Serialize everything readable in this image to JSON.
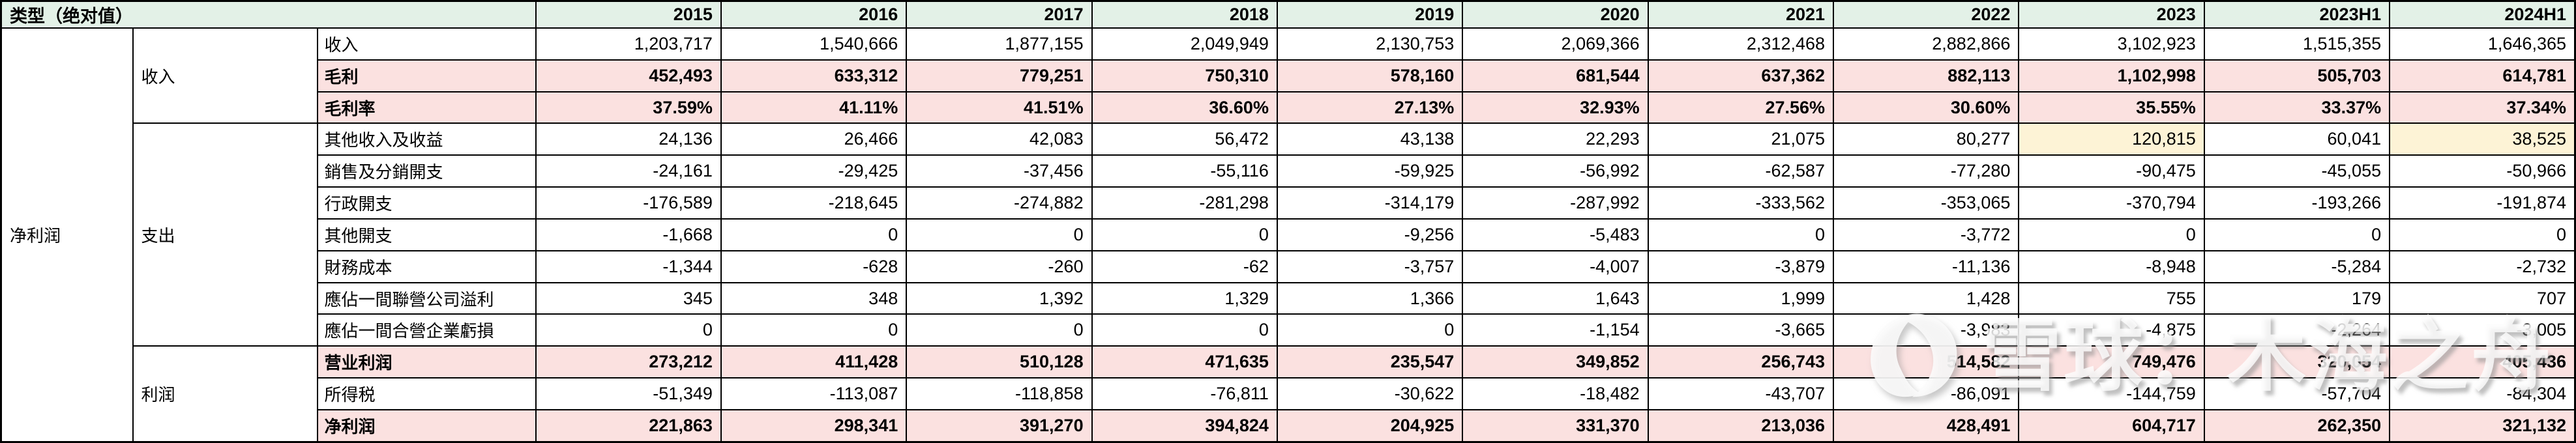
{
  "table": {
    "title": "类型（绝对值）",
    "years": [
      "2015",
      "2016",
      "2017",
      "2018",
      "2019",
      "2020",
      "2021",
      "2022",
      "2023",
      "2023H1",
      "2024H1"
    ],
    "left_label": "净利润",
    "groups": [
      {
        "label": "收入",
        "rows": [
          {
            "label": "收入",
            "highlight": false,
            "values": [
              "1,203,717",
              "1,540,666",
              "1,877,155",
              "2,049,949",
              "2,130,753",
              "2,069,366",
              "2,312,468",
              "2,882,866",
              "3,102,923",
              "1,515,355",
              "1,646,365"
            ]
          },
          {
            "label": "毛利",
            "highlight": true,
            "values": [
              "452,493",
              "633,312",
              "779,251",
              "750,310",
              "578,160",
              "681,544",
              "637,362",
              "882,113",
              "1,102,998",
              "505,703",
              "614,781"
            ]
          },
          {
            "label": "毛利率",
            "highlight": true,
            "values": [
              "37.59%",
              "41.11%",
              "41.51%",
              "36.60%",
              "27.13%",
              "32.93%",
              "27.56%",
              "30.60%",
              "35.55%",
              "33.37%",
              "37.34%"
            ]
          }
        ]
      },
      {
        "label": "支出",
        "rows": [
          {
            "label": "其他收入及收益",
            "highlight": false,
            "yellow_value_indices": [
              8,
              10
            ],
            "values": [
              "24,136",
              "26,466",
              "42,083",
              "56,472",
              "43,138",
              "22,293",
              "21,075",
              "80,277",
              "120,815",
              "60,041",
              "38,525"
            ]
          },
          {
            "label": "銷售及分銷開支",
            "highlight": false,
            "values": [
              "-24,161",
              "-29,425",
              "-37,456",
              "-55,116",
              "-59,925",
              "-56,992",
              "-62,587",
              "-77,280",
              "-90,475",
              "-45,055",
              "-50,966"
            ]
          },
          {
            "label": "行政開支",
            "highlight": false,
            "values": [
              "-176,589",
              "-218,645",
              "-274,882",
              "-281,298",
              "-314,179",
              "-287,992",
              "-333,562",
              "-353,065",
              "-370,794",
              "-193,266",
              "-191,874"
            ]
          },
          {
            "label": "其他開支",
            "highlight": false,
            "values": [
              "-1,668",
              "0",
              "0",
              "0",
              "-9,256",
              "-5,483",
              "0",
              "-3,772",
              "0",
              "0",
              "0"
            ]
          },
          {
            "label": "財務成本",
            "highlight": false,
            "values": [
              "-1,344",
              "-628",
              "-260",
              "-62",
              "-3,757",
              "-4,007",
              "-3,879",
              "-11,136",
              "-8,948",
              "-5,284",
              "-2,732"
            ]
          },
          {
            "label": "應佔一間聯營公司溢利",
            "highlight": false,
            "values": [
              "345",
              "348",
              "1,392",
              "1,329",
              "1,366",
              "1,643",
              "1,999",
              "1,428",
              "755",
              "179",
              "707"
            ]
          },
          {
            "label": "應佔一間合營企業虧損",
            "highlight": false,
            "values": [
              "0",
              "0",
              "0",
              "0",
              "0",
              "-1,154",
              "-3,665",
              "-3,983",
              "-4,875",
              "-2,264",
              "-3,005"
            ]
          }
        ]
      },
      {
        "label": "利润",
        "rows": [
          {
            "label": "营业利润",
            "highlight": true,
            "values": [
              "273,212",
              "411,428",
              "510,128",
              "471,635",
              "235,547",
              "349,852",
              "256,743",
              "514,582",
              "749,476",
              "320,054",
              "405,436"
            ]
          },
          {
            "label": "所得税",
            "highlight": false,
            "values": [
              "-51,349",
              "-113,087",
              "-118,858",
              "-76,811",
              "-30,622",
              "-18,482",
              "-43,707",
              "-86,091",
              "-144,759",
              "-57,704",
              "-84,304"
            ]
          },
          {
            "label": "净利润",
            "highlight": true,
            "values": [
              "221,863",
              "298,341",
              "391,270",
              "394,824",
              "204,925",
              "331,370",
              "213,036",
              "428,491",
              "604,717",
              "262,350",
              "321,132"
            ]
          }
        ]
      }
    ]
  },
  "watermark": {
    "text": "雪球：木海之舟",
    "logo": "snowball-logo"
  },
  "colors": {
    "header_green": "#e3f1e7",
    "highlight_pink": "#fbe1e0",
    "cell_yellow": "#fdf3d6",
    "border": "#000000",
    "text": "#000000"
  },
  "chart_data": {
    "type": "table",
    "title": "类型（绝对值）",
    "columns": [
      "2015",
      "2016",
      "2017",
      "2018",
      "2019",
      "2020",
      "2021",
      "2022",
      "2023",
      "2023H1",
      "2024H1"
    ],
    "rows": [
      {
        "label": "收入",
        "values": [
          1203717,
          1540666,
          1877155,
          2049949,
          2130753,
          2069366,
          2312468,
          2882866,
          3102923,
          1515355,
          1646365
        ]
      },
      {
        "label": "毛利",
        "values": [
          452493,
          633312,
          779251,
          750310,
          578160,
          681544,
          637362,
          882113,
          1102998,
          505703,
          614781
        ]
      },
      {
        "label": "毛利率",
        "values": [
          "37.59%",
          "41.11%",
          "41.51%",
          "36.60%",
          "27.13%",
          "32.93%",
          "27.56%",
          "30.60%",
          "35.55%",
          "33.37%",
          "37.34%"
        ]
      },
      {
        "label": "其他收入及收益",
        "values": [
          24136,
          26466,
          42083,
          56472,
          43138,
          22293,
          21075,
          80277,
          120815,
          60041,
          38525
        ]
      },
      {
        "label": "銷售及分銷開支",
        "values": [
          -24161,
          -29425,
          -37456,
          -55116,
          -59925,
          -56992,
          -62587,
          -77280,
          -90475,
          -45055,
          -50966
        ]
      },
      {
        "label": "行政開支",
        "values": [
          -176589,
          -218645,
          -274882,
          -281298,
          -314179,
          -287992,
          -333562,
          -353065,
          -370794,
          -193266,
          -191874
        ]
      },
      {
        "label": "其他開支",
        "values": [
          -1668,
          0,
          0,
          0,
          -9256,
          -5483,
          0,
          -3772,
          0,
          0,
          0
        ]
      },
      {
        "label": "財務成本",
        "values": [
          -1344,
          -628,
          -260,
          -62,
          -3757,
          -4007,
          -3879,
          -11136,
          -8948,
          -5284,
          -2732
        ]
      },
      {
        "label": "應佔一間聯營公司溢利",
        "values": [
          345,
          348,
          1392,
          1329,
          1366,
          1643,
          1999,
          1428,
          755,
          179,
          707
        ]
      },
      {
        "label": "應佔一間合營企業虧損",
        "values": [
          0,
          0,
          0,
          0,
          0,
          -1154,
          -3665,
          -3983,
          -4875,
          -2264,
          -3005
        ]
      },
      {
        "label": "营业利润",
        "values": [
          273212,
          411428,
          510128,
          471635,
          235547,
          349852,
          256743,
          514582,
          749476,
          320054,
          405436
        ]
      },
      {
        "label": "所得税",
        "values": [
          -51349,
          -113087,
          -118858,
          -76811,
          -30622,
          -18482,
          -43707,
          -86091,
          -144759,
          -57704,
          -84304
        ]
      },
      {
        "label": "净利润",
        "values": [
          221863,
          298341,
          391270,
          394824,
          204925,
          331370,
          213036,
          428491,
          604717,
          262350,
          321132
        ]
      }
    ]
  }
}
